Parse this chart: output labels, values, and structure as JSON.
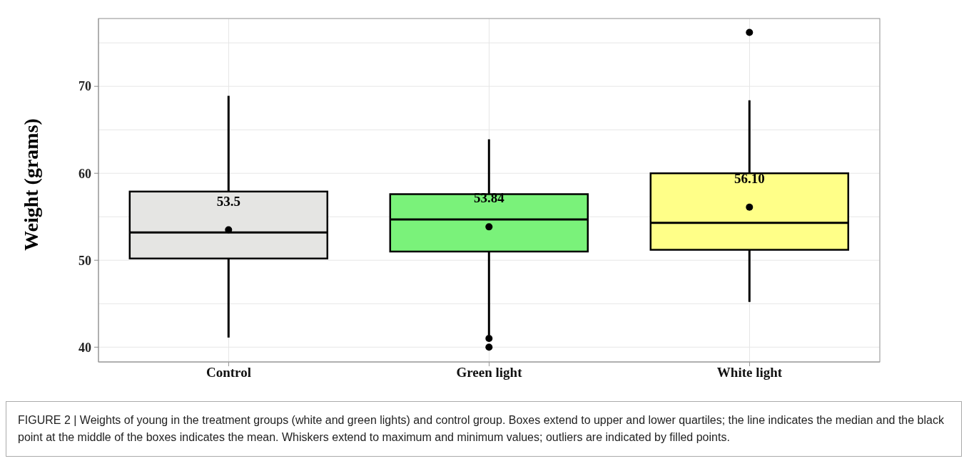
{
  "chart_data": {
    "type": "box",
    "ylabel": "Weight (grams)",
    "categories": [
      "Control",
      "Green light",
      "White light"
    ],
    "colors": [
      "#e5e5e3",
      "#7af27a",
      "#ffff88"
    ],
    "boxes": [
      {
        "low": 41.1,
        "q1": 50.2,
        "median": 53.2,
        "q3": 57.9,
        "high": 68.9,
        "mean": 53.5
      },
      {
        "low": 41.4,
        "q1": 51.0,
        "median": 54.7,
        "q3": 57.6,
        "high": 63.9,
        "mean": 53.84,
        "outliers": [
          41.0,
          40.0
        ]
      },
      {
        "low": 45.2,
        "q1": 51.2,
        "median": 54.3,
        "q3": 60.0,
        "high": 68.4,
        "mean": 56.1,
        "outliers": [
          76.2
        ]
      }
    ],
    "ylim": [
      38.3,
      77.8
    ],
    "yticks": [
      40,
      {
        "value": 45,
        "label": null
      },
      50,
      {
        "value": 55,
        "label": null
      },
      60,
      {
        "value": 65,
        "label": null
      },
      70,
      {
        "value": 75,
        "label": null
      }
    ],
    "grid": true,
    "annotations": [
      {
        "text": "53.5",
        "x": "Control",
        "y": 53.5
      },
      {
        "text": "53.84",
        "x": "Green light",
        "y": 53.84
      },
      {
        "text": "56.10",
        "x": "White light",
        "y": 56.1
      },
      "FIGURE 2 | Weights of young in the treatment groups (white and green lights) and control group. Boxes extend to upper and lower quartiles; the line indicates the median and the black point at the middle of the boxes indicates the mean. Whiskers extend to maximum and minimum values; outliers are indicated by filled points."
    ]
  }
}
